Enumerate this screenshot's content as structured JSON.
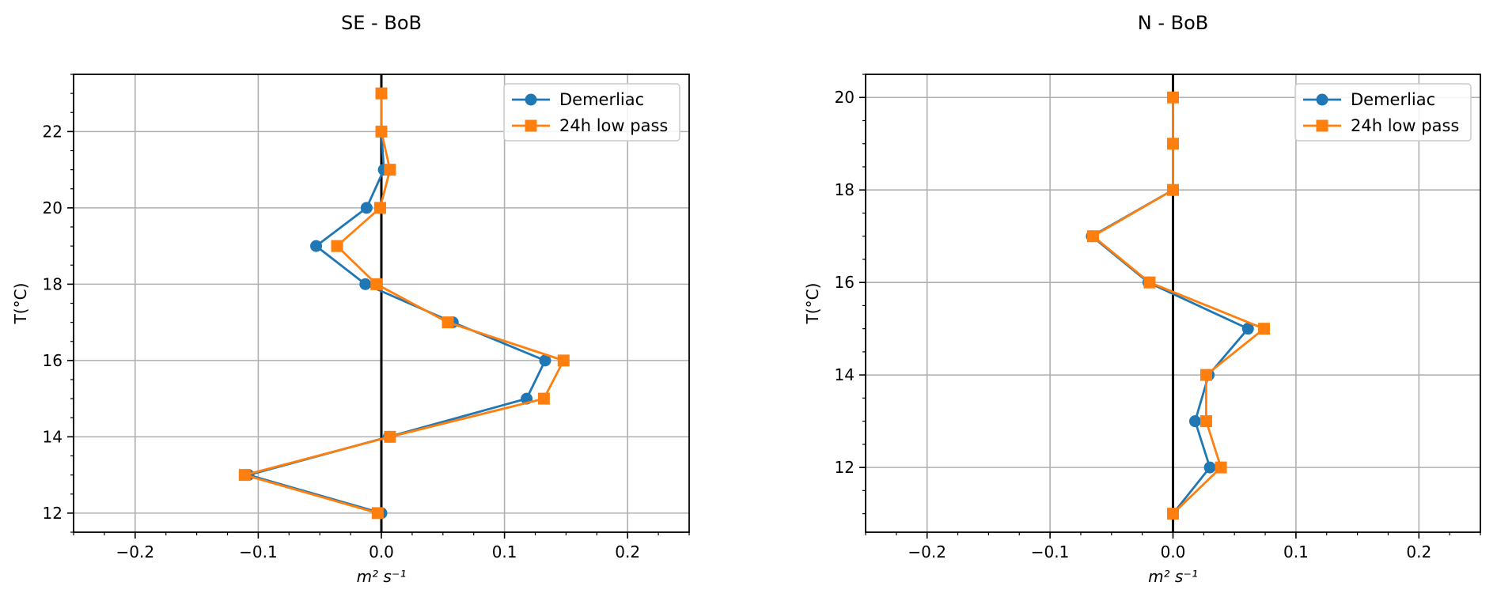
{
  "chart_data": [
    {
      "type": "line",
      "title": "SE - BoB",
      "xlabel": "m² s⁻¹",
      "ylabel": "T(°C)",
      "xlim": [
        -0.25,
        0.25
      ],
      "ylim": [
        11.5,
        23.5
      ],
      "xticks": [
        -0.2,
        -0.1,
        0.0,
        0.1,
        0.2
      ],
      "xtick_labels": [
        "−0.2",
        "−0.1",
        "0.0",
        "0.1",
        "0.2"
      ],
      "yticks": [
        12,
        14,
        16,
        18,
        20,
        22
      ],
      "ytick_labels": [
        "12",
        "14",
        "16",
        "18",
        "20",
        "22"
      ],
      "grid": true,
      "legend_position": "top-right",
      "zero_line": 0,
      "series": [
        {
          "name": "Demerliac",
          "color": "#1f77b4",
          "marker": "circle",
          "x": [
            0.0,
            -0.108,
            0.006,
            0.118,
            0.133,
            0.058,
            -0.013,
            -0.053,
            -0.012,
            0.002,
            0.0,
            0.0
          ],
          "y": [
            12,
            13,
            14,
            15,
            16,
            17,
            18,
            19,
            20,
            21,
            22,
            23
          ]
        },
        {
          "name": "24h low pass",
          "color": "#ff7f0e",
          "marker": "square",
          "x": [
            -0.003,
            -0.111,
            0.007,
            0.132,
            0.148,
            0.054,
            -0.004,
            -0.036,
            -0.001,
            0.007,
            0.0,
            0.0
          ],
          "y": [
            12,
            13,
            14,
            15,
            16,
            17,
            18,
            19,
            20,
            21,
            22,
            23
          ]
        }
      ]
    },
    {
      "type": "line",
      "title": "N - BoB",
      "xlabel": "m² s⁻¹",
      "ylabel": "T(°C)",
      "xlim": [
        -0.25,
        0.25
      ],
      "ylim": [
        10.6,
        20.5
      ],
      "xticks": [
        -0.2,
        -0.1,
        0.0,
        0.1,
        0.2
      ],
      "xtick_labels": [
        "−0.2",
        "−0.1",
        "0.0",
        "0.1",
        "0.2"
      ],
      "yticks": [
        12,
        14,
        16,
        18,
        20
      ],
      "ytick_labels": [
        "12",
        "14",
        "16",
        "18",
        "20"
      ],
      "grid": true,
      "legend_position": "top-right",
      "zero_line": 0,
      "series": [
        {
          "name": "Demerliac",
          "color": "#1f77b4",
          "marker": "circle",
          "x": [
            0.0,
            0.03,
            0.018,
            0.029,
            0.061,
            -0.02,
            -0.066,
            0.0,
            0.0,
            0.0
          ],
          "y": [
            11,
            12,
            13,
            14,
            15,
            16,
            17,
            18,
            19,
            20
          ]
        },
        {
          "name": "24h low pass",
          "color": "#ff7f0e",
          "marker": "square",
          "x": [
            0.0,
            0.039,
            0.027,
            0.027,
            0.074,
            -0.019,
            -0.065,
            0.0,
            0.0,
            0.0
          ],
          "y": [
            11,
            12,
            13,
            14,
            15,
            16,
            17,
            18,
            19,
            20
          ]
        }
      ]
    }
  ]
}
